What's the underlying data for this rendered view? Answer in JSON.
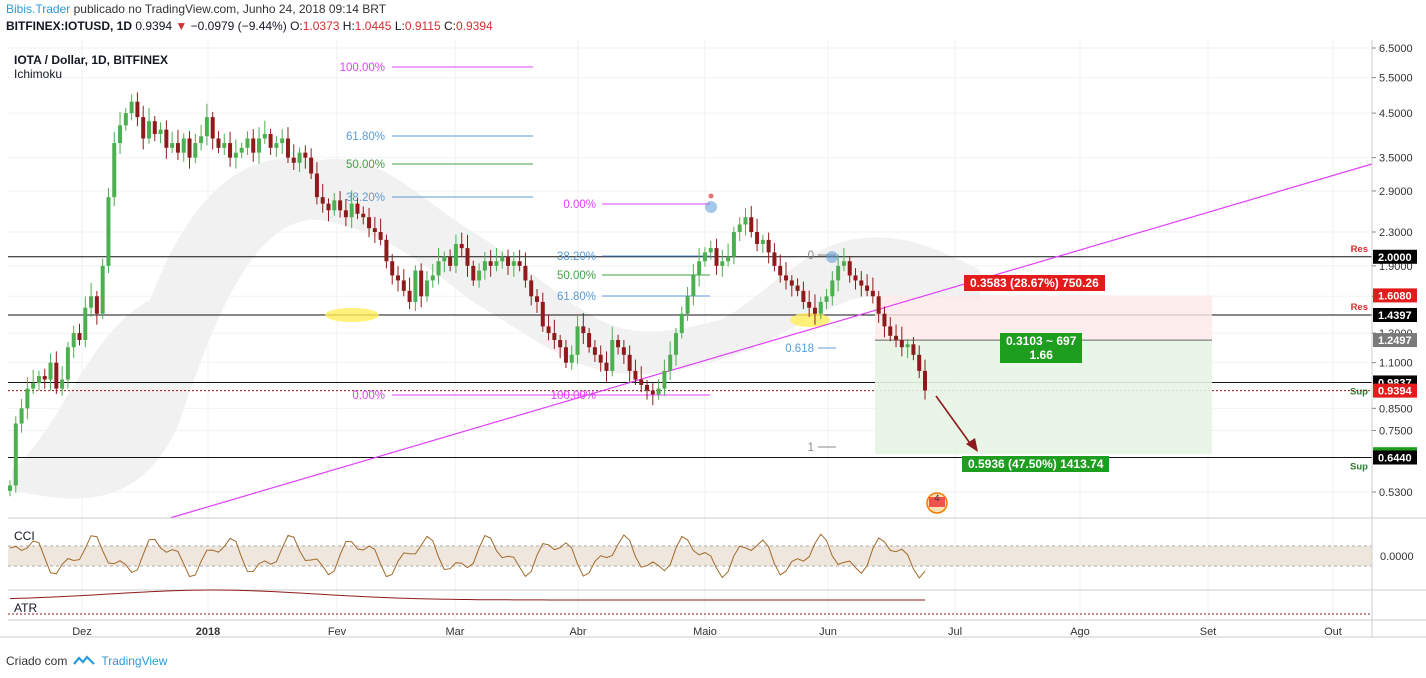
{
  "header": {
    "author": "Bibis.Trader",
    "published": "publicado no TradingView.com, Junho 24, 2018 09:14 BRT",
    "symbol": "BITFINEX:IOTUSD, 1D",
    "price": "0.9394",
    "change": "−0.0979 (−9.44%)",
    "o_label": "O:",
    "o_value": "1.0373",
    "h_label": "H:",
    "h_value": "1.0445",
    "l_label": "L:",
    "l_value": "0.9115",
    "c_label": "C:",
    "c_value": "0.9394"
  },
  "legend": {
    "title": "IOTA / Dollar, 1D, BITFINEX",
    "indicator": "Ichimoku"
  },
  "footer": {
    "created_with": "Criado com",
    "brand": "TradingView"
  },
  "colors": {
    "up": "#4caf50",
    "down": "#8e1b1b",
    "fib_magenta": "#e040fb",
    "fib_blue": "#5b9bd5",
    "fib_green": "#43a047",
    "trendline": "#e040fb",
    "cci": "#a06a2a",
    "atr": "#8e1b1b",
    "green_box": "#1e9e1e",
    "red_box": "#e31b1b",
    "black_box": "#000000"
  },
  "chart_data": {
    "type": "candlestick",
    "y_scale": "log",
    "y_ticks": [
      "6.5000",
      "5.5000",
      "4.5000",
      "3.5000",
      "2.9000",
      "2.3000",
      "1.9000",
      "1.6000",
      "1.3000",
      "1.1000",
      "0.8500",
      "0.7500",
      "0.5300"
    ],
    "x_ticks": [
      "Dez",
      "2018",
      "Fev",
      "Mar",
      "Abr",
      "Maio",
      "Jun",
      "Jul",
      "Ago",
      "Set",
      "Out"
    ],
    "axis_price_labels": [
      {
        "value": "2.0000",
        "style": "black"
      },
      {
        "value": "1.6080",
        "style": "red"
      },
      {
        "value": "1.4397",
        "style": "black"
      },
      {
        "value": "1.2497",
        "style": "gray"
      },
      {
        "value": "0.9837",
        "style": "black"
      },
      {
        "value": "0.9394",
        "style": "red"
      },
      {
        "value": "0.6561",
        "style": "green"
      },
      {
        "value": "0.6440",
        "style": "black"
      }
    ],
    "horizontal_levels": [
      {
        "price": 2.0,
        "label": "Res"
      },
      {
        "price": 1.4397,
        "label": "Res"
      },
      {
        "price": 0.9837,
        "label": "Sup"
      },
      {
        "price": 0.644,
        "label": "Sup"
      }
    ],
    "fib_retracement_1": [
      "100.00%",
      "61.80%",
      "50.00%",
      "38.20%",
      "0.00%"
    ],
    "fib_retracement_2": [
      "0.00%",
      "38.20%",
      "50.00%",
      "61.80%",
      "100.00%"
    ],
    "fib_extension": [
      "0",
      "0.618",
      "1"
    ],
    "position_boxes": [
      {
        "text": "0.3583 (28.67%) 750.26",
        "type": "risk"
      },
      {
        "text": "0.3103 ~ 697",
        "text2": "1.66",
        "type": "entry"
      },
      {
        "text": "0.5936 (47.50%) 1413.74",
        "type": "target"
      }
    ],
    "indicators": [
      {
        "name": "CCI",
        "value": "0.0000"
      },
      {
        "name": "ATR",
        "value": ""
      }
    ],
    "closes": [
      0.55,
      0.78,
      0.85,
      0.95,
      0.98,
      1.02,
      1.0,
      1.1,
      0.95,
      1.0,
      1.2,
      1.3,
      1.25,
      1.5,
      1.6,
      1.45,
      1.9,
      2.8,
      3.8,
      4.2,
      4.5,
      4.8,
      4.4,
      3.9,
      4.3,
      4.0,
      4.1,
      3.7,
      3.8,
      3.6,
      3.9,
      3.5,
      3.8,
      3.95,
      4.4,
      3.9,
      3.7,
      3.8,
      3.5,
      3.6,
      3.7,
      3.9,
      3.6,
      3.9,
      4.0,
      3.7,
      3.8,
      3.9,
      3.5,
      3.4,
      3.6,
      3.5,
      3.2,
      2.8,
      2.7,
      2.6,
      2.75,
      2.6,
      2.5,
      2.7,
      2.55,
      2.5,
      2.35,
      2.3,
      2.2,
      1.95,
      1.8,
      1.75,
      1.65,
      1.55,
      1.85,
      1.6,
      1.75,
      1.8,
      1.95,
      2.0,
      1.9,
      2.15,
      2.1,
      1.9,
      1.75,
      1.85,
      1.95,
      1.9,
      1.95,
      2.0,
      1.9,
      1.95,
      1.9,
      1.75,
      1.6,
      1.55,
      1.35,
      1.3,
      1.25,
      1.2,
      1.1,
      1.15,
      1.35,
      1.3,
      1.2,
      1.15,
      1.1,
      1.05,
      1.25,
      1.2,
      1.15,
      1.05,
      1.0,
      0.97,
      0.94,
      0.92,
      0.95,
      1.05,
      1.15,
      1.3,
      1.45,
      1.6,
      1.8,
      1.95,
      2.05,
      2.1,
      1.9,
      1.95,
      2.0,
      2.3,
      2.4,
      2.5,
      2.3,
      2.15,
      2.2,
      2.05,
      1.9,
      1.8,
      1.75,
      1.7,
      1.65,
      1.55,
      1.5,
      1.45,
      1.55,
      1.6,
      1.75,
      1.9,
      1.95,
      1.8,
      1.75,
      1.7,
      1.65,
      1.6,
      1.45,
      1.35,
      1.28,
      1.25,
      1.2,
      1.22,
      1.15,
      1.05,
      0.94
    ]
  }
}
